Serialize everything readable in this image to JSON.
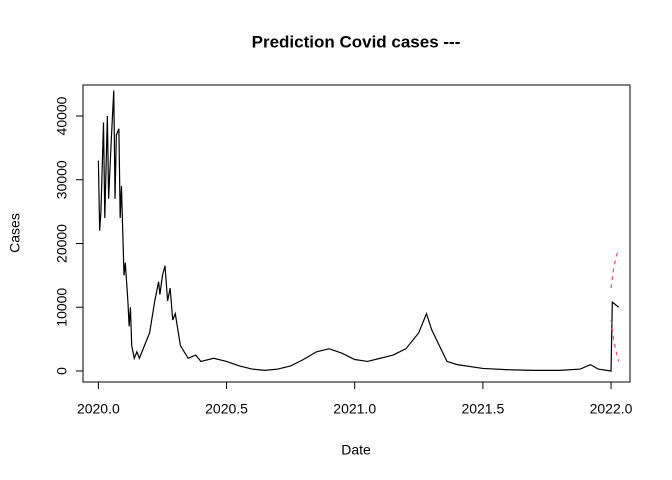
{
  "chart_data": {
    "type": "line",
    "title": "Prediction Covid cases ---",
    "x_label": "Date",
    "y_label": "Cases",
    "xlim": [
      2019.94,
      2022.074
    ],
    "ylim": [
      -1725,
      44863
    ],
    "xticks": [
      {
        "value": 2020,
        "label": "2020.0"
      },
      2020.5,
      {
        "value": 2021,
        "label": "2021.0"
      },
      2021.5,
      {
        "value": 2022,
        "label": "2022.0"
      }
    ],
    "yticks": [
      0,
      10000,
      20000,
      30000,
      40000
    ],
    "series": [
      {
        "color": "#000000",
        "dashed": false,
        "x": [
          2020.0,
          2020.005,
          2020.01,
          2020.02,
          2020.025,
          2020.035,
          2020.04,
          2020.05,
          2020.06,
          2020.065,
          2020.07,
          2020.08,
          2020.085,
          2020.09,
          2020.1,
          2020.105,
          2020.115,
          2020.12,
          2020.125,
          2020.13,
          2020.14,
          2020.15,
          2020.16,
          2020.18,
          2020.2,
          2020.22,
          2020.235,
          2020.24,
          2020.25,
          2020.26,
          2020.27,
          2020.28,
          2020.29,
          2020.3,
          2020.32,
          2020.35,
          2020.38,
          2020.4,
          2020.45,
          2020.5,
          2020.55,
          2020.6,
          2020.65,
          2020.7,
          2020.75,
          2020.8,
          2020.85,
          2020.9,
          2020.95,
          2021.0,
          2021.05,
          2021.1,
          2021.15,
          2021.2,
          2021.25,
          2021.28,
          2021.3,
          2021.33,
          2021.36,
          2021.4,
          2021.5,
          2021.6,
          2021.7,
          2021.8,
          2021.88,
          2021.92,
          2021.95,
          2022.0,
          2022.005,
          2022.03
        ],
        "values": [
          33000,
          22000,
          25000,
          39000,
          24000,
          40000,
          27000,
          36000,
          44000,
          27000,
          37000,
          38000,
          24000,
          29000,
          15000,
          17000,
          11000,
          7000,
          10000,
          4000,
          2000,
          3000,
          2000,
          4000,
          6000,
          11000,
          14000,
          12000,
          15000,
          16500,
          11000,
          13000,
          8000,
          9000,
          4000,
          2000,
          2500,
          1500,
          2000,
          1500,
          800,
          300,
          100,
          300,
          800,
          1800,
          3000,
          3500,
          2800,
          1800,
          1500,
          2000,
          2500,
          3500,
          6000,
          9000,
          6500,
          4000,
          1500,
          1000,
          400,
          200,
          100,
          100,
          300,
          1000,
          300,
          0,
          10800,
          10000
        ]
      },
      {
        "color": "#df536b",
        "dashed": true,
        "x": [
          2022.0,
          2022.01,
          2022.02,
          2022.03
        ],
        "values": [
          13000,
          16000,
          18000,
          19000
        ]
      },
      {
        "color": "#df536b",
        "dashed": true,
        "x": [
          2022.0,
          2022.01,
          2022.02,
          2022.03
        ],
        "values": [
          8000,
          5000,
          3000,
          1500
        ]
      }
    ]
  }
}
